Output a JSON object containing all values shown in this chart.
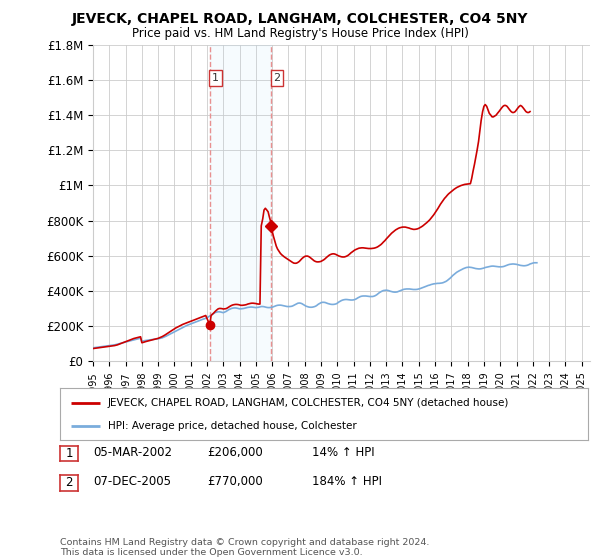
{
  "title": "JEVECK, CHAPEL ROAD, LANGHAM, COLCHESTER, CO4 5NY",
  "subtitle": "Price paid vs. HM Land Registry's House Price Index (HPI)",
  "ylim": [
    0,
    1800000
  ],
  "yticks": [
    0,
    200000,
    400000,
    600000,
    800000,
    1000000,
    1200000,
    1400000,
    1600000,
    1800000
  ],
  "ytick_labels": [
    "£0",
    "£200K",
    "£400K",
    "£600K",
    "£800K",
    "£1M",
    "£1.2M",
    "£1.4M",
    "£1.6M",
    "£1.8M"
  ],
  "background_color": "#ffffff",
  "grid_color": "#cccccc",
  "sale1_date": 2002.17,
  "sale1_price": 206000,
  "sale2_date": 2005.92,
  "sale2_price": 770000,
  "sale_color": "#cc0000",
  "vline_color": "#e89090",
  "hpi_color": "#7aacdc",
  "legend_line1": "JEVECK, CHAPEL ROAD, LANGHAM, COLCHESTER, CO4 5NY (detached house)",
  "legend_line2": "HPI: Average price, detached house, Colchester",
  "footer": "Contains HM Land Registry data © Crown copyright and database right 2024.\nThis data is licensed under the Open Government Licence v3.0.",
  "hpi_x": [
    1995.0,
    1995.08,
    1995.17,
    1995.25,
    1995.33,
    1995.42,
    1995.5,
    1995.58,
    1995.67,
    1995.75,
    1995.83,
    1995.92,
    1996.0,
    1996.08,
    1996.17,
    1996.25,
    1996.33,
    1996.42,
    1996.5,
    1996.58,
    1996.67,
    1996.75,
    1996.83,
    1996.92,
    1997.0,
    1997.08,
    1997.17,
    1997.25,
    1997.33,
    1997.42,
    1997.5,
    1997.58,
    1997.67,
    1997.75,
    1997.83,
    1997.92,
    1998.0,
    1998.08,
    1998.17,
    1998.25,
    1998.33,
    1998.42,
    1998.5,
    1998.58,
    1998.67,
    1998.75,
    1998.83,
    1998.92,
    1999.0,
    1999.08,
    1999.17,
    1999.25,
    1999.33,
    1999.42,
    1999.5,
    1999.58,
    1999.67,
    1999.75,
    1999.83,
    1999.92,
    2000.0,
    2000.08,
    2000.17,
    2000.25,
    2000.33,
    2000.42,
    2000.5,
    2000.58,
    2000.67,
    2000.75,
    2000.83,
    2000.92,
    2001.0,
    2001.08,
    2001.17,
    2001.25,
    2001.33,
    2001.42,
    2001.5,
    2001.58,
    2001.67,
    2001.75,
    2001.83,
    2001.92,
    2002.0,
    2002.08,
    2002.17,
    2002.25,
    2002.33,
    2002.42,
    2002.5,
    2002.58,
    2002.67,
    2002.75,
    2002.83,
    2002.92,
    2003.0,
    2003.08,
    2003.17,
    2003.25,
    2003.33,
    2003.42,
    2003.5,
    2003.58,
    2003.67,
    2003.75,
    2003.83,
    2003.92,
    2004.0,
    2004.08,
    2004.17,
    2004.25,
    2004.33,
    2004.42,
    2004.5,
    2004.58,
    2004.67,
    2004.75,
    2004.83,
    2004.92,
    2005.0,
    2005.08,
    2005.17,
    2005.25,
    2005.33,
    2005.42,
    2005.5,
    2005.58,
    2005.67,
    2005.75,
    2005.83,
    2005.92,
    2006.0,
    2006.08,
    2006.17,
    2006.25,
    2006.33,
    2006.42,
    2006.5,
    2006.58,
    2006.67,
    2006.75,
    2006.83,
    2006.92,
    2007.0,
    2007.08,
    2007.17,
    2007.25,
    2007.33,
    2007.42,
    2007.5,
    2007.58,
    2007.67,
    2007.75,
    2007.83,
    2007.92,
    2008.0,
    2008.08,
    2008.17,
    2008.25,
    2008.33,
    2008.42,
    2008.5,
    2008.58,
    2008.67,
    2008.75,
    2008.83,
    2008.92,
    2009.0,
    2009.08,
    2009.17,
    2009.25,
    2009.33,
    2009.42,
    2009.5,
    2009.58,
    2009.67,
    2009.75,
    2009.83,
    2009.92,
    2010.0,
    2010.08,
    2010.17,
    2010.25,
    2010.33,
    2010.42,
    2010.5,
    2010.58,
    2010.67,
    2010.75,
    2010.83,
    2010.92,
    2011.0,
    2011.08,
    2011.17,
    2011.25,
    2011.33,
    2011.42,
    2011.5,
    2011.58,
    2011.67,
    2011.75,
    2011.83,
    2011.92,
    2012.0,
    2012.08,
    2012.17,
    2012.25,
    2012.33,
    2012.42,
    2012.5,
    2012.58,
    2012.67,
    2012.75,
    2012.83,
    2012.92,
    2013.0,
    2013.08,
    2013.17,
    2013.25,
    2013.33,
    2013.42,
    2013.5,
    2013.58,
    2013.67,
    2013.75,
    2013.83,
    2013.92,
    2014.0,
    2014.08,
    2014.17,
    2014.25,
    2014.33,
    2014.42,
    2014.5,
    2014.58,
    2014.67,
    2014.75,
    2014.83,
    2014.92,
    2015.0,
    2015.08,
    2015.17,
    2015.25,
    2015.33,
    2015.42,
    2015.5,
    2015.58,
    2015.67,
    2015.75,
    2015.83,
    2015.92,
    2016.0,
    2016.08,
    2016.17,
    2016.25,
    2016.33,
    2016.42,
    2016.5,
    2016.58,
    2016.67,
    2016.75,
    2016.83,
    2016.92,
    2017.0,
    2017.08,
    2017.17,
    2017.25,
    2017.33,
    2017.42,
    2017.5,
    2017.58,
    2017.67,
    2017.75,
    2017.83,
    2017.92,
    2018.0,
    2018.08,
    2018.17,
    2018.25,
    2018.33,
    2018.42,
    2018.5,
    2018.58,
    2018.67,
    2018.75,
    2018.83,
    2018.92,
    2019.0,
    2019.08,
    2019.17,
    2019.25,
    2019.33,
    2019.42,
    2019.5,
    2019.58,
    2019.67,
    2019.75,
    2019.83,
    2019.92,
    2020.0,
    2020.08,
    2020.17,
    2020.25,
    2020.33,
    2020.42,
    2020.5,
    2020.58,
    2020.67,
    2020.75,
    2020.83,
    2020.92,
    2021.0,
    2021.08,
    2021.17,
    2021.25,
    2021.33,
    2021.42,
    2021.5,
    2021.58,
    2021.67,
    2021.75,
    2021.83,
    2021.92,
    2022.0,
    2022.08,
    2022.17,
    2022.25,
    2022.33,
    2022.42,
    2022.5,
    2022.58,
    2022.67,
    2022.75,
    2022.83,
    2022.92,
    2023.0,
    2023.08,
    2023.17,
    2023.25,
    2023.33,
    2023.42,
    2023.5,
    2023.58,
    2023.67,
    2023.75,
    2023.83,
    2023.92,
    2024.0,
    2024.08,
    2024.17,
    2024.25,
    2024.33,
    2024.42,
    2024.5
  ],
  "hpi_y": [
    76000,
    77000,
    78000,
    79000,
    80000,
    81000,
    82000,
    83000,
    84000,
    85000,
    86000,
    87000,
    88000,
    89000,
    90000,
    91000,
    93000,
    95000,
    97000,
    99000,
    101000,
    103000,
    105000,
    107000,
    109000,
    111000,
    113000,
    115000,
    117000,
    119000,
    121000,
    123000,
    125000,
    127000,
    129000,
    131000,
    113000,
    115000,
    117000,
    118000,
    119000,
    120000,
    121000,
    122000,
    123000,
    124000,
    125000,
    126000,
    127000,
    129000,
    131000,
    133000,
    136000,
    139000,
    143000,
    147000,
    151000,
    155000,
    159000,
    163000,
    167000,
    171000,
    175000,
    179000,
    183000,
    187000,
    191000,
    195000,
    199000,
    203000,
    206000,
    209000,
    212000,
    215000,
    218000,
    221000,
    224000,
    227000,
    230000,
    233000,
    236000,
    239000,
    241000,
    244000,
    247000,
    252000,
    257000,
    262000,
    267000,
    272000,
    277000,
    279000,
    281000,
    281000,
    280000,
    278000,
    276000,
    279000,
    283000,
    288000,
    293000,
    297000,
    300000,
    302000,
    303000,
    303000,
    302000,
    300000,
    298000,
    298000,
    299000,
    300000,
    302000,
    304000,
    306000,
    307000,
    308000,
    308000,
    307000,
    306000,
    305000,
    306000,
    307000,
    309000,
    311000,
    311000,
    310000,
    308000,
    306000,
    305000,
    305000,
    306000,
    307000,
    310000,
    313000,
    316000,
    318000,
    319000,
    319000,
    318000,
    316000,
    314000,
    312000,
    311000,
    311000,
    311000,
    312000,
    314000,
    318000,
    323000,
    327000,
    330000,
    331000,
    330000,
    327000,
    322000,
    317000,
    313000,
    310000,
    308000,
    307000,
    307000,
    308000,
    310000,
    313000,
    318000,
    324000,
    329000,
    333000,
    335000,
    335000,
    334000,
    331000,
    328000,
    326000,
    324000,
    323000,
    323000,
    324000,
    326000,
    330000,
    336000,
    341000,
    345000,
    348000,
    350000,
    351000,
    351000,
    350000,
    349000,
    348000,
    348000,
    349000,
    351000,
    355000,
    360000,
    364000,
    368000,
    370000,
    371000,
    371000,
    371000,
    370000,
    369000,
    368000,
    368000,
    368000,
    370000,
    373000,
    378000,
    384000,
    390000,
    395000,
    399000,
    402000,
    403000,
    404000,
    403000,
    401000,
    398000,
    396000,
    394000,
    393000,
    393000,
    394000,
    397000,
    400000,
    404000,
    407000,
    409000,
    410000,
    411000,
    411000,
    411000,
    410000,
    409000,
    408000,
    408000,
    408000,
    409000,
    411000,
    413000,
    416000,
    419000,
    422000,
    425000,
    428000,
    431000,
    433000,
    436000,
    438000,
    440000,
    441000,
    442000,
    443000,
    443000,
    444000,
    445000,
    447000,
    450000,
    454000,
    459000,
    465000,
    472000,
    479000,
    487000,
    494000,
    501000,
    506000,
    511000,
    515000,
    519000,
    523000,
    527000,
    530000,
    533000,
    534000,
    535000,
    534000,
    533000,
    531000,
    529000,
    527000,
    526000,
    525000,
    525000,
    526000,
    528000,
    530000,
    533000,
    535000,
    537000,
    539000,
    540000,
    541000,
    541000,
    540000,
    539000,
    538000,
    537000,
    537000,
    537000,
    538000,
    540000,
    543000,
    546000,
    549000,
    551000,
    552000,
    553000,
    553000,
    552000,
    551000,
    549000,
    547000,
    545000,
    544000,
    543000,
    543000,
    544000,
    546000,
    549000,
    553000,
    556000,
    558000,
    560000,
    560000,
    560000
  ],
  "house_x": [
    1995.0,
    1995.08,
    1995.17,
    1995.25,
    1995.33,
    1995.42,
    1995.5,
    1995.58,
    1995.67,
    1995.75,
    1995.83,
    1995.92,
    1996.0,
    1996.08,
    1996.17,
    1996.25,
    1996.33,
    1996.42,
    1996.5,
    1996.58,
    1996.67,
    1996.75,
    1996.83,
    1996.92,
    1997.0,
    1997.08,
    1997.17,
    1997.25,
    1997.33,
    1997.42,
    1997.5,
    1997.58,
    1997.67,
    1997.75,
    1997.83,
    1997.92,
    1998.0,
    1998.08,
    1998.17,
    1998.25,
    1998.33,
    1998.42,
    1998.5,
    1998.58,
    1998.67,
    1998.75,
    1998.83,
    1998.92,
    1999.0,
    1999.08,
    1999.17,
    1999.25,
    1999.33,
    1999.42,
    1999.5,
    1999.58,
    1999.67,
    1999.75,
    1999.83,
    1999.92,
    2000.0,
    2000.08,
    2000.17,
    2000.25,
    2000.33,
    2000.42,
    2000.5,
    2000.58,
    2000.67,
    2000.75,
    2000.83,
    2000.92,
    2001.0,
    2001.08,
    2001.17,
    2001.25,
    2001.33,
    2001.42,
    2001.5,
    2001.58,
    2001.67,
    2001.75,
    2001.83,
    2001.92,
    2002.17,
    2002.25,
    2002.33,
    2002.42,
    2002.5,
    2002.58,
    2002.67,
    2002.75,
    2002.83,
    2002.92,
    2003.0,
    2003.08,
    2003.17,
    2003.25,
    2003.33,
    2003.42,
    2003.5,
    2003.58,
    2003.67,
    2003.75,
    2003.83,
    2003.92,
    2004.0,
    2004.08,
    2004.17,
    2004.25,
    2004.33,
    2004.42,
    2004.5,
    2004.58,
    2004.67,
    2004.75,
    2004.83,
    2004.92,
    2005.0,
    2005.08,
    2005.17,
    2005.25,
    2005.33,
    2005.42,
    2005.5,
    2005.58,
    2005.67,
    2005.75,
    2005.83,
    2005.92,
    2006.0,
    2006.08,
    2006.17,
    2006.25,
    2006.33,
    2006.42,
    2006.5,
    2006.58,
    2006.67,
    2006.75,
    2006.83,
    2006.92,
    2007.0,
    2007.08,
    2007.17,
    2007.25,
    2007.33,
    2007.42,
    2007.5,
    2007.58,
    2007.67,
    2007.75,
    2007.83,
    2007.92,
    2008.0,
    2008.08,
    2008.17,
    2008.25,
    2008.33,
    2008.42,
    2008.5,
    2008.58,
    2008.67,
    2008.75,
    2008.83,
    2008.92,
    2009.0,
    2009.08,
    2009.17,
    2009.25,
    2009.33,
    2009.42,
    2009.5,
    2009.58,
    2009.67,
    2009.75,
    2009.83,
    2009.92,
    2010.0,
    2010.08,
    2010.17,
    2010.25,
    2010.33,
    2010.42,
    2010.5,
    2010.58,
    2010.67,
    2010.75,
    2010.83,
    2010.92,
    2011.0,
    2011.08,
    2011.17,
    2011.25,
    2011.33,
    2011.42,
    2011.5,
    2011.58,
    2011.67,
    2011.75,
    2011.83,
    2011.92,
    2012.0,
    2012.08,
    2012.17,
    2012.25,
    2012.33,
    2012.42,
    2012.5,
    2012.58,
    2012.67,
    2012.75,
    2012.83,
    2012.92,
    2013.0,
    2013.08,
    2013.17,
    2013.25,
    2013.33,
    2013.42,
    2013.5,
    2013.58,
    2013.67,
    2013.75,
    2013.83,
    2013.92,
    2014.0,
    2014.08,
    2014.17,
    2014.25,
    2014.33,
    2014.42,
    2014.5,
    2014.58,
    2014.67,
    2014.75,
    2014.83,
    2014.92,
    2015.0,
    2015.08,
    2015.17,
    2015.25,
    2015.33,
    2015.42,
    2015.5,
    2015.58,
    2015.67,
    2015.75,
    2015.83,
    2015.92,
    2016.0,
    2016.08,
    2016.17,
    2016.25,
    2016.33,
    2016.42,
    2016.5,
    2016.58,
    2016.67,
    2016.75,
    2016.83,
    2016.92,
    2017.0,
    2017.08,
    2017.17,
    2017.25,
    2017.33,
    2017.42,
    2017.5,
    2017.58,
    2017.67,
    2017.75,
    2017.83,
    2017.92,
    2018.0,
    2018.08,
    2018.17,
    2018.25,
    2018.33,
    2018.42,
    2018.5,
    2018.58,
    2018.67,
    2018.75,
    2018.83,
    2018.92,
    2019.0,
    2019.08,
    2019.17,
    2019.25,
    2019.33,
    2019.42,
    2019.5,
    2019.58,
    2019.67,
    2019.75,
    2019.83,
    2019.92,
    2020.0,
    2020.08,
    2020.17,
    2020.25,
    2020.33,
    2020.42,
    2020.5,
    2020.58,
    2020.67,
    2020.75,
    2020.83,
    2020.92,
    2021.0,
    2021.08,
    2021.17,
    2021.25,
    2021.33,
    2021.42,
    2021.5,
    2021.58,
    2021.67,
    2021.75,
    2021.83,
    2021.92,
    2022.0,
    2022.08,
    2022.17,
    2022.25,
    2022.33,
    2022.42,
    2022.5,
    2022.58,
    2022.67,
    2022.75,
    2022.83,
    2022.92,
    2023.0,
    2023.08,
    2023.17,
    2023.25,
    2023.33,
    2023.42,
    2023.5,
    2023.58,
    2023.67,
    2023.75,
    2023.83,
    2023.92,
    2024.0,
    2024.08,
    2024.17,
    2024.25,
    2024.33,
    2024.42,
    2024.5
  ],
  "house_y": [
    72000,
    73000,
    74000,
    75000,
    76000,
    77000,
    78000,
    79000,
    80000,
    81000,
    82000,
    83000,
    84000,
    85000,
    86000,
    87000,
    89000,
    91000,
    93000,
    96000,
    99000,
    102000,
    105000,
    108000,
    111000,
    114000,
    117000,
    120000,
    123000,
    126000,
    129000,
    131000,
    133000,
    135000,
    137000,
    139000,
    105000,
    107000,
    110000,
    112000,
    114000,
    116000,
    118000,
    120000,
    122000,
    124000,
    126000,
    128000,
    130000,
    133000,
    136000,
    140000,
    144000,
    149000,
    154000,
    159000,
    164000,
    169000,
    174000,
    179000,
    184000,
    189000,
    193000,
    197000,
    201000,
    205000,
    209000,
    212000,
    215000,
    218000,
    221000,
    224000,
    227000,
    230000,
    233000,
    236000,
    239000,
    242000,
    245000,
    248000,
    251000,
    254000,
    257000,
    260000,
    206000,
    260000,
    267000,
    275000,
    283000,
    290000,
    297000,
    300000,
    300000,
    299000,
    297000,
    298000,
    299000,
    303000,
    308000,
    313000,
    317000,
    320000,
    322000,
    323000,
    323000,
    322000,
    320000,
    318000,
    318000,
    319000,
    320000,
    322000,
    325000,
    327000,
    329000,
    330000,
    330000,
    329000,
    328000,
    326000,
    325000,
    325000,
    770000,
    810000,
    860000,
    870000,
    860000,
    850000,
    820000,
    790000,
    740000,
    710000,
    680000,
    655000,
    638000,
    625000,
    614000,
    606000,
    599000,
    593000,
    588000,
    583000,
    578000,
    572000,
    567000,
    562000,
    558000,
    557000,
    558000,
    562000,
    568000,
    576000,
    584000,
    591000,
    596000,
    598000,
    598000,
    595000,
    590000,
    583000,
    576000,
    571000,
    567000,
    565000,
    565000,
    566000,
    568000,
    572000,
    577000,
    583000,
    590000,
    597000,
    603000,
    607000,
    610000,
    611000,
    610000,
    607000,
    603000,
    599000,
    596000,
    594000,
    593000,
    593000,
    595000,
    598000,
    603000,
    609000,
    616000,
    622000,
    628000,
    633000,
    637000,
    640000,
    643000,
    644000,
    645000,
    645000,
    644000,
    643000,
    642000,
    641000,
    641000,
    641000,
    642000,
    643000,
    645000,
    648000,
    652000,
    657000,
    663000,
    670000,
    678000,
    686000,
    695000,
    703000,
    712000,
    720000,
    728000,
    735000,
    741000,
    747000,
    752000,
    756000,
    759000,
    761000,
    763000,
    763000,
    763000,
    761000,
    759000,
    757000,
    754000,
    752000,
    750000,
    750000,
    751000,
    753000,
    756000,
    760000,
    765000,
    770000,
    776000,
    782000,
    789000,
    796000,
    804000,
    813000,
    822000,
    833000,
    844000,
    856000,
    868000,
    881000,
    893000,
    905000,
    916000,
    926000,
    935000,
    944000,
    952000,
    959000,
    966000,
    972000,
    978000,
    983000,
    988000,
    992000,
    996000,
    999000,
    1002000,
    1004000,
    1006000,
    1007000,
    1008000,
    1009000,
    1010000,
    1040000,
    1080000,
    1120000,
    1160000,
    1200000,
    1250000,
    1310000,
    1370000,
    1420000,
    1450000,
    1460000,
    1450000,
    1430000,
    1410000,
    1400000,
    1390000,
    1390000,
    1395000,
    1400000,
    1410000,
    1420000,
    1430000,
    1440000,
    1450000,
    1455000,
    1455000,
    1450000,
    1440000,
    1430000,
    1420000,
    1415000,
    1415000,
    1420000,
    1430000,
    1440000,
    1450000,
    1455000,
    1450000,
    1440000,
    1430000,
    1420000,
    1415000,
    1415000,
    1420000
  ]
}
